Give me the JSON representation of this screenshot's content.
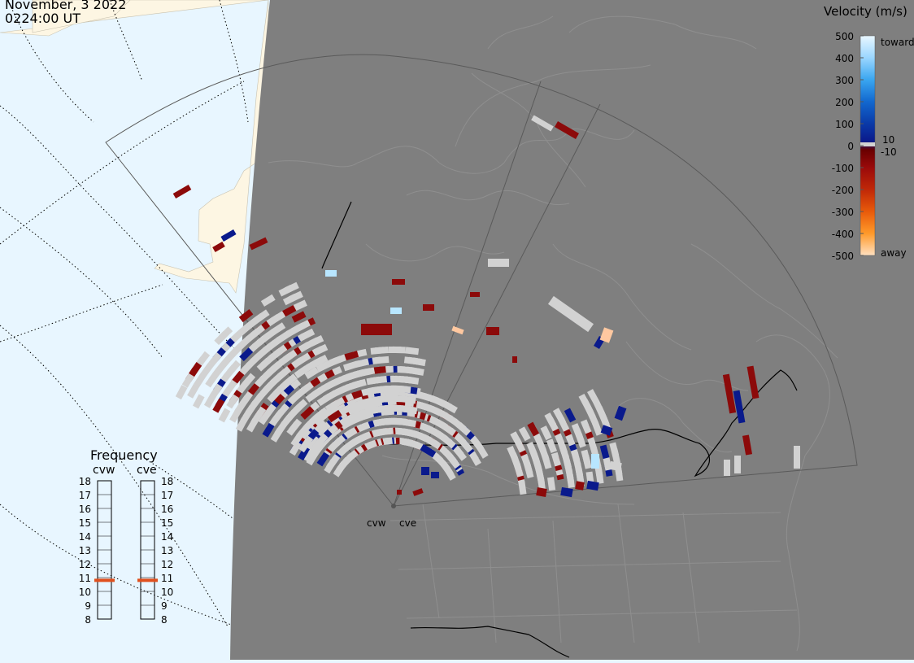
{
  "header": {
    "date": "November, 3 2022",
    "time": "0224:00 UT"
  },
  "colors": {
    "ocean": "#e8f6ff",
    "land_outside": "#fdf6e3",
    "night_shade": "#7f7f7f",
    "grey_scatter": "#d2d2d2",
    "toward": "#0a1a8c",
    "away": "#8c0a0a",
    "boundary": "#a0a0a0"
  },
  "legend": {
    "title": "Velocity (m/s)",
    "ticks": [
      "500",
      "400",
      "300",
      "200",
      "100",
      "0",
      "-100",
      "-200",
      "-300",
      "-400",
      "-500"
    ],
    "threshold_pos": "10",
    "threshold_neg": "-10",
    "toward_label": "toward",
    "away_label": "away",
    "stops": [
      "#dff3ff",
      "#9ad6ff",
      "#3aa6f0",
      "#1268cf",
      "#0a3aa8",
      "#0a1a8c",
      "#5a0000",
      "#8c0a0a",
      "#b82a08",
      "#e05a0a",
      "#ff8a1a",
      "#ffc48a",
      "#ffe2c4"
    ]
  },
  "frequency": {
    "title": "Frequency",
    "radars": [
      {
        "name": "cvw",
        "value_mhz": 10.8
      },
      {
        "name": "cve",
        "value_mhz": 10.8
      }
    ],
    "scale": [
      "18",
      "17",
      "16",
      "15",
      "14",
      "13",
      "12",
      "11",
      "10",
      "9",
      "8"
    ],
    "marker_color": "#e0501e"
  },
  "radars": [
    {
      "name": "cvw"
    },
    {
      "name": "cve"
    }
  ]
}
